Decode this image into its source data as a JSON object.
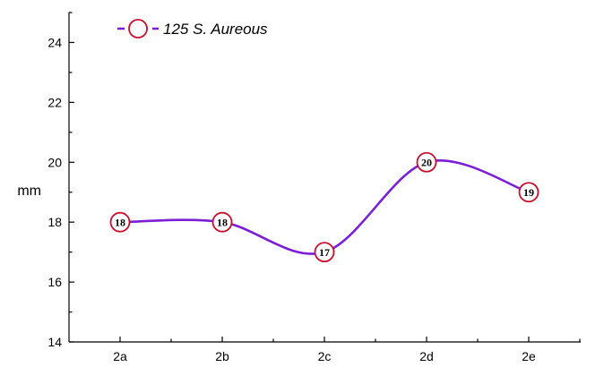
{
  "chart_data": {
    "type": "line",
    "categories": [
      "2a",
      "2b",
      "2c",
      "2d",
      "2e"
    ],
    "series": [
      {
        "name": "125 S. Aureous",
        "values": [
          18,
          18,
          17,
          20,
          19
        ]
      }
    ],
    "data_labels": [
      "18",
      "18",
      "17",
      "20",
      "19"
    ],
    "ylabel": "mm",
    "xlabel": "",
    "ylim": [
      14,
      25
    ],
    "yticks": [
      14,
      16,
      18,
      20,
      22,
      24
    ],
    "legend_position": "top-left",
    "grid": false,
    "smooth": true,
    "colors": {
      "line": "#7b1fd6",
      "marker": "#c8102e",
      "axis": "#000000"
    }
  }
}
